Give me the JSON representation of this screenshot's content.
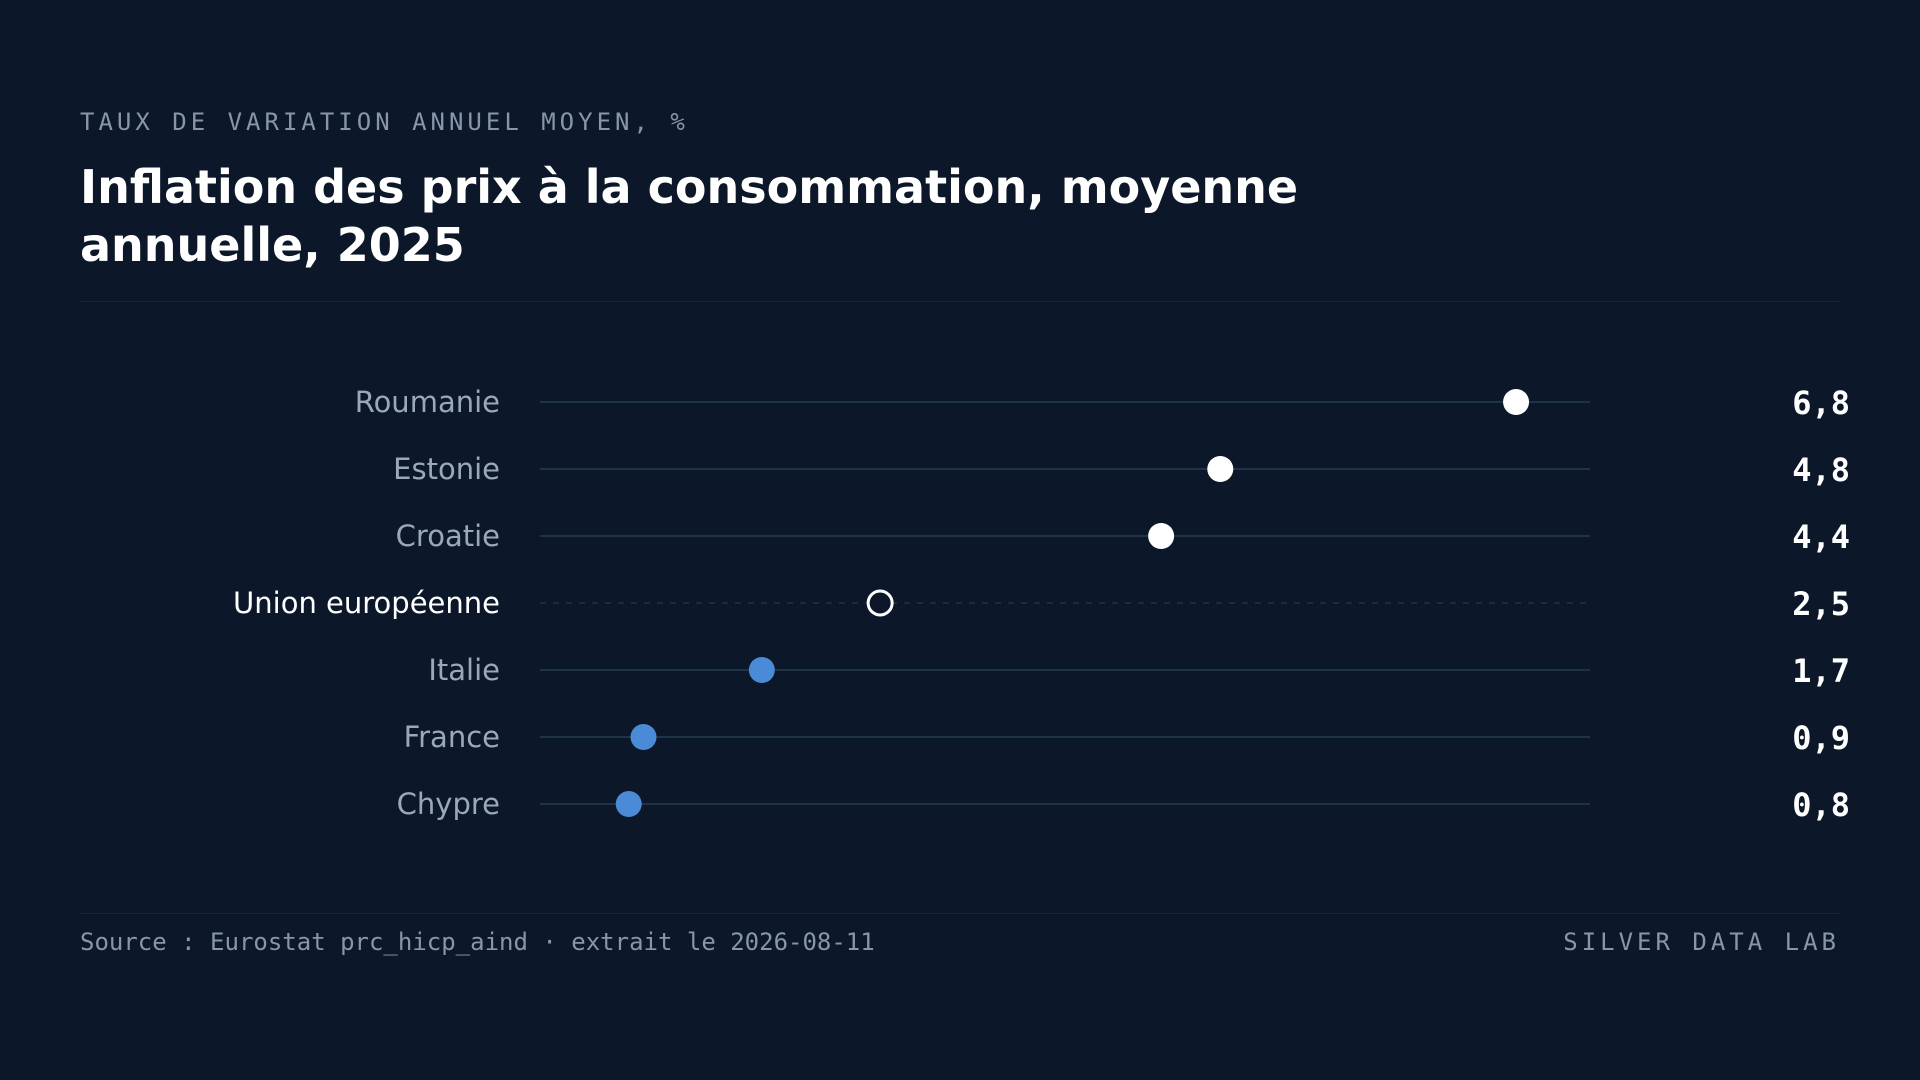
{
  "header": {
    "eyebrow": "TAUX DE VARIATION ANNUEL MOYEN, %",
    "title": "Inflation des prix à la consommation, moyenne annuelle, 2025"
  },
  "footer": {
    "source": "Source : Eurostat prc_hicp_aind · extrait le 2026-08-11",
    "brand": "SILVER DATA LAB"
  },
  "colors": {
    "background": "#0c1829",
    "high": "#ffffff",
    "low": "#4a8ad6",
    "reference": "#ffffff",
    "track": "#1f3347",
    "label": "#9aa8bb",
    "label_reference": "#ffffff",
    "value": "#ffffff"
  },
  "chart_data": {
    "type": "dot",
    "title": "Inflation des prix à la consommation, moyenne annuelle, 2025",
    "unit": "%",
    "xlim": [
      0.2,
      7.3
    ],
    "grid": false,
    "legend": "none",
    "rows": [
      {
        "label": "Roumanie",
        "value": 6.8,
        "display": "6,8",
        "group": "high"
      },
      {
        "label": "Estonie",
        "value": 4.8,
        "display": "4,8",
        "group": "high"
      },
      {
        "label": "Croatie",
        "value": 4.4,
        "display": "4,4",
        "group": "high"
      },
      {
        "label": "Union européenne",
        "value": 2.5,
        "display": "2,5",
        "group": "reference"
      },
      {
        "label": "Italie",
        "value": 1.7,
        "display": "1,7",
        "group": "low"
      },
      {
        "label": "France",
        "value": 0.9,
        "display": "0,9",
        "group": "low"
      },
      {
        "label": "Chypre",
        "value": 0.8,
        "display": "0,8",
        "group": "low"
      }
    ]
  }
}
